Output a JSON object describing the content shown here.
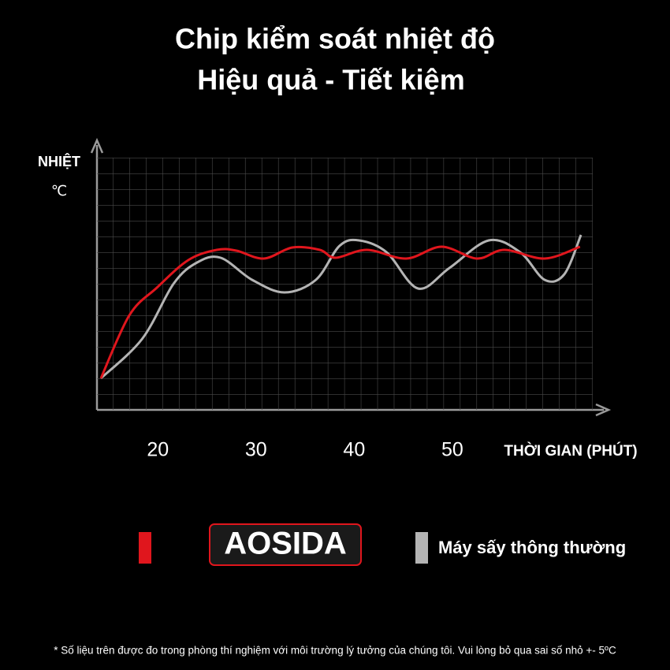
{
  "chart_data": {
    "type": "line",
    "title": "Chip kiểm soát nhiệt độ",
    "subtitle": "Hiệu quả - Tiết kiệm",
    "y_label": "NHIỆT",
    "y_unit": "℃",
    "x_label": "THỜI GIAN (PHÚT)",
    "xlim": [
      13.8,
      64.3
    ],
    "xticks": [
      20,
      30,
      40,
      50
    ],
    "ylim": [
      0,
      16
    ],
    "grid": true,
    "series": [
      {
        "name": "AOSIDA",
        "color": "#e0161d",
        "x": [
          14.2,
          17.1,
          19.9,
          23.1,
          26.0,
          28.0,
          30.8,
          33.7,
          36.5,
          38.1,
          41.3,
          45.3,
          48.9,
          52.5,
          55.3,
          59.4,
          63.0
        ],
        "values": [
          2.0,
          6.0,
          7.75,
          9.5,
          10.15,
          10.1,
          9.6,
          10.3,
          10.15,
          9.65,
          10.15,
          9.6,
          10.35,
          9.6,
          10.15,
          9.6,
          10.35
        ]
      },
      {
        "name": "Máy sấy thông thường",
        "color": "#b4b4b4",
        "x": [
          14.2,
          18.4,
          21.6,
          24.0,
          26.4,
          29.6,
          32.9,
          36.1,
          38.5,
          40.5,
          43.3,
          46.5,
          49.7,
          53.7,
          56.9,
          59.4,
          61.4,
          63.1
        ],
        "values": [
          2.0,
          4.5,
          8.0,
          9.35,
          9.65,
          8.25,
          7.45,
          8.25,
          10.4,
          10.75,
          10.0,
          7.7,
          9.0,
          10.75,
          10.0,
          8.25,
          8.6,
          11.1
        ]
      }
    ],
    "footnote": "* Số liệu trên được đo trong phòng thí nghiệm với môi trường lý tưởng của chúng tôi. Vui lòng bỏ qua sai số nhỏ +- 5ºC"
  }
}
